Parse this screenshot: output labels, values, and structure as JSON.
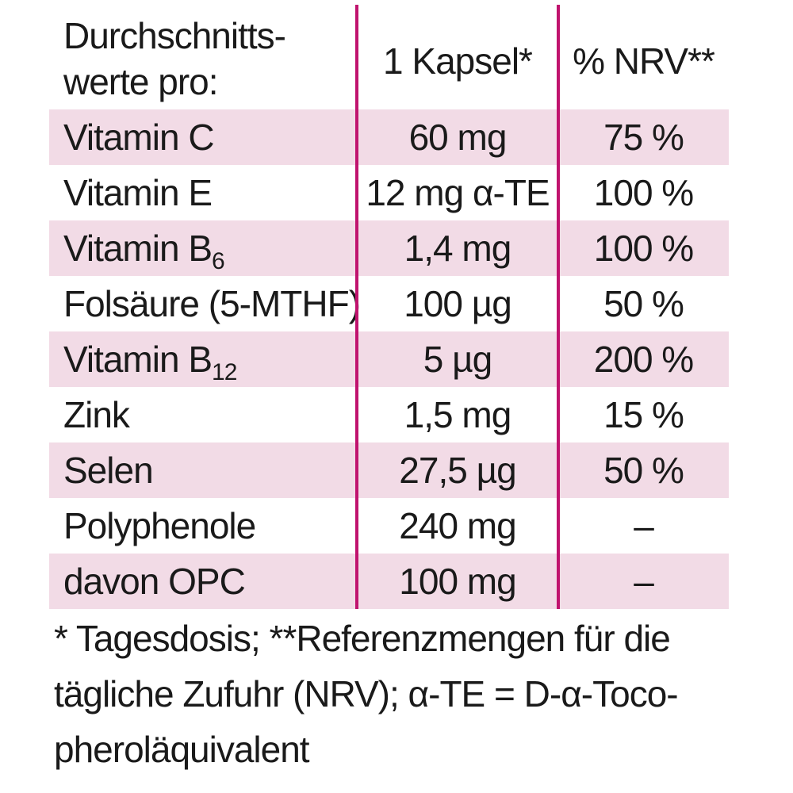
{
  "header": {
    "name_label": "Durchschnitts-\nwerte pro:",
    "amount_label": "1 Kapsel*",
    "nrv_label": "% NRV**"
  },
  "rows": [
    {
      "name": "Vitamin C",
      "sub": "",
      "amount": "60 mg",
      "nrv": "75 %",
      "shaded": true
    },
    {
      "name": "Vitamin E",
      "sub": "",
      "amount": "12 mg α-TE",
      "nrv": "100 %",
      "shaded": false
    },
    {
      "name": "Vitamin B",
      "sub": "6",
      "amount": "1,4 mg",
      "nrv": "100 %",
      "shaded": true
    },
    {
      "name": "Folsäure (5-MTHF)",
      "sub": "",
      "amount": "100 µg",
      "nrv": "50 %",
      "shaded": false
    },
    {
      "name": "Vitamin B",
      "sub": "12",
      "amount": "5 µg",
      "nrv": "200 %",
      "shaded": true
    },
    {
      "name": "Zink",
      "sub": "",
      "amount": "1,5 mg",
      "nrv": "15 %",
      "shaded": false
    },
    {
      "name": "Selen",
      "sub": "",
      "amount": "27,5 µg",
      "nrv": "50 %",
      "shaded": true
    },
    {
      "name": "Polyphenole",
      "sub": "",
      "amount": "240 mg",
      "nrv": "–",
      "shaded": false
    },
    {
      "name": "davon OPC",
      "sub": "",
      "amount": "100 mg",
      "nrv": "–",
      "shaded": true
    }
  ],
  "footnote": {
    "line1": "* Tagesdosis; **Referenzmengen für die",
    "line2": "tägliche Zufuhr (NRV); α-TE = D-α-Toco-",
    "line3": "pheroläquivalent"
  },
  "colors": {
    "row_shade": "#f2dbe6",
    "divider": "#c0136e",
    "text": "#1a1a1a"
  }
}
